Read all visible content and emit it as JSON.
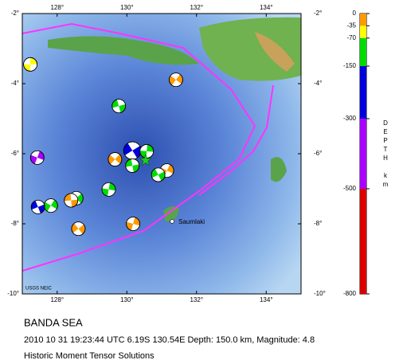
{
  "map": {
    "xlim": [
      127,
      135
    ],
    "ylim": [
      -10,
      -2
    ],
    "lon_ticks": [
      {
        "value": 128,
        "label": "128°"
      },
      {
        "value": 130,
        "label": "130°"
      },
      {
        "value": 132,
        "label": "132°"
      },
      {
        "value": 134,
        "label": "134°"
      }
    ],
    "lat_ticks": [
      {
        "value": -2,
        "label": "-2°"
      },
      {
        "value": -4,
        "label": "-4°"
      },
      {
        "value": -6,
        "label": "-6°"
      },
      {
        "value": -8,
        "label": "-8°"
      },
      {
        "value": -10,
        "label": "-10°"
      }
    ],
    "place": {
      "name": "Saumlaki",
      "lon": 131.3,
      "lat": -7.93
    },
    "credit": "USGS NEIC",
    "epicenter": {
      "lon": 130.54,
      "lat": -6.19
    },
    "events": [
      {
        "lon": 127.23,
        "lat": -3.45,
        "color": "#ffff00"
      },
      {
        "lon": 131.41,
        "lat": -3.89,
        "color": "#ff9900"
      },
      {
        "lon": 129.77,
        "lat": -4.64,
        "color": "#00dd00"
      },
      {
        "lon": 127.43,
        "lat": -6.11,
        "color": "#aa00ff"
      },
      {
        "lon": 130.16,
        "lat": -5.91,
        "color": "#0000dd"
      },
      {
        "lon": 130.57,
        "lat": -5.93,
        "color": "#00dd00"
      },
      {
        "lon": 129.66,
        "lat": -6.16,
        "color": "#ff9900"
      },
      {
        "lon": 130.16,
        "lat": -6.34,
        "color": "#00dd00"
      },
      {
        "lon": 131.15,
        "lat": -6.48,
        "color": "#ff9900"
      },
      {
        "lon": 130.9,
        "lat": -6.6,
        "color": "#00dd00"
      },
      {
        "lon": 129.48,
        "lat": -7.02,
        "color": "#00dd00"
      },
      {
        "lon": 128.55,
        "lat": -7.27,
        "color": "#00dd00"
      },
      {
        "lon": 128.4,
        "lat": -7.33,
        "color": "#ff9900"
      },
      {
        "lon": 127.82,
        "lat": -7.48,
        "color": "#00dd00"
      },
      {
        "lon": 127.45,
        "lat": -7.52,
        "color": "#0000dd"
      },
      {
        "lon": 130.18,
        "lat": -8.0,
        "color": "#ff9900"
      },
      {
        "lon": 128.61,
        "lat": -8.14,
        "color": "#ff9900"
      }
    ]
  },
  "depth_scale": {
    "title": "DEPTH km",
    "ticks": [
      0,
      -35,
      -70,
      -150,
      -300,
      -500,
      -800
    ],
    "colors": [
      "#ff9900",
      "#ffff00",
      "#00dd00",
      "#0000dd",
      "#aa00ff",
      "#dd0000"
    ]
  },
  "caption": {
    "title": "BANDA SEA",
    "detail": "2010 10 31 19:23:44 UTC 6.19S 130.54E Depth: 150.0 km, Magnitude: 4.8",
    "note": "Historic Moment Tensor Solutions"
  }
}
